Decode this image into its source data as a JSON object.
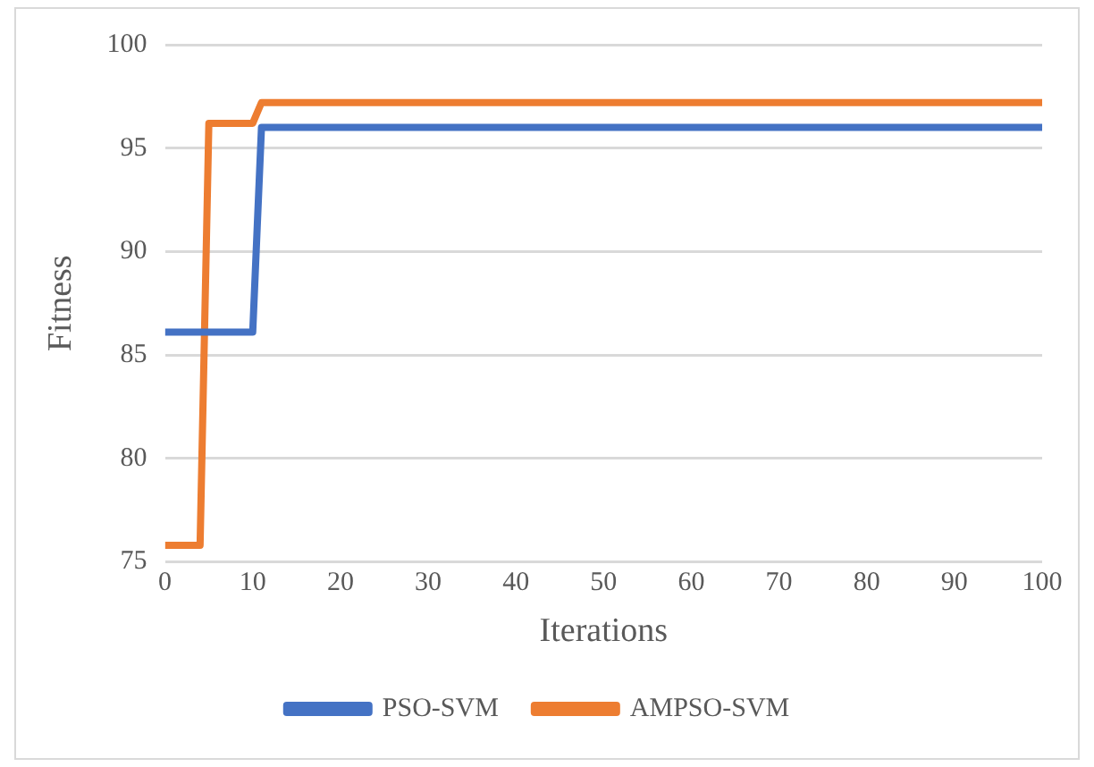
{
  "chart_data": {
    "type": "line",
    "xlabel": "Iterations",
    "ylabel": "Fitness",
    "xlim": [
      0,
      100
    ],
    "xticks": [
      0,
      10,
      20,
      30,
      40,
      50,
      60,
      70,
      80,
      90,
      100
    ],
    "ylim": [
      75,
      100
    ],
    "yticks": [
      75,
      80,
      85,
      90,
      95,
      100
    ],
    "grid": "y",
    "legend": "bottom",
    "marker": "none",
    "line_style": "solid",
    "series": [
      {
        "name": "PSO-SVM",
        "color": "#4472c4",
        "x": [
          0,
          10,
          11,
          100
        ],
        "values": [
          86.1,
          86.1,
          96,
          96
        ]
      },
      {
        "name": "AMPSO-SVM",
        "color": "#ed7d31",
        "x": [
          0,
          4,
          5,
          10,
          11,
          100
        ],
        "values": [
          75.8,
          75.8,
          96.2,
          96.2,
          97.2,
          97.2
        ]
      }
    ]
  }
}
